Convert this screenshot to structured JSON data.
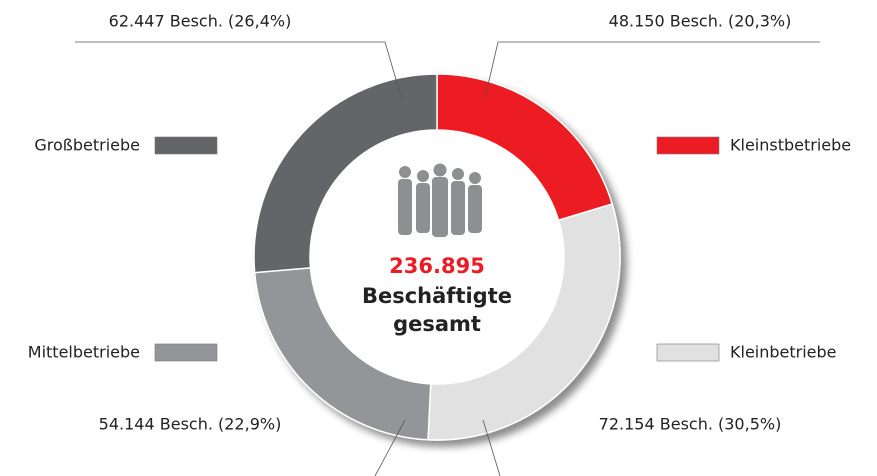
{
  "chart_data": {
    "type": "donut",
    "categories": [
      "Kleinstbetriebe",
      "Kleinbetriebe",
      "Mittelbetriebe",
      "Großbetriebe"
    ],
    "values": [
      48150,
      72154,
      54144,
      62447
    ],
    "value_labels": [
      "48.150 Besch. (20,3%)",
      "72.154 Besch. (30,5%)",
      "54.144 Besch. (22,9%)",
      "62.447 Besch. (26,4%)"
    ],
    "colors": [
      "#ed1c24",
      "#e1e1e2",
      "#949598",
      "#646567"
    ],
    "center_total": {
      "value": 236895,
      "label": "236.895"
    },
    "center_text": [
      "Beschäftigte",
      "gesamt"
    ]
  }
}
